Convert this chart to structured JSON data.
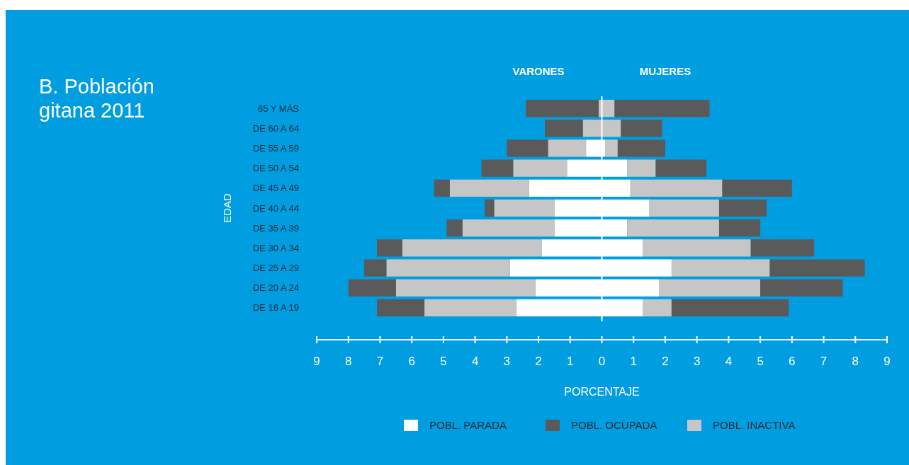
{
  "chart_data": {
    "type": "bar",
    "orientation": "horizontal",
    "stacked": true,
    "title": "B. Población gitana 2011",
    "xlabel": "PORCENTAJE",
    "ylabel": "EDAD",
    "annotations": [
      "VARONES",
      "MUJERES"
    ],
    "categories": [
      "65 Y MÁS",
      "DE 60 A 64",
      "DE 55 A 59",
      "DE 50 A 54",
      "DE 45 A 49",
      "DE 40 A 44",
      "DE 35 A 39",
      "DE 30 A 34",
      "DE 25 A 29",
      "DE 20 A 24",
      "DE 16 A 19"
    ],
    "series": [
      {
        "name": "POBL. PARADA",
        "color": "#ffffff",
        "values": [
          0,
          0,
          -0.5,
          -1.1,
          -2.3,
          -1.5,
          -1.5,
          -1.9,
          -2.9,
          -2.1,
          -2.7
        ]
      },
      {
        "color": "#c6c6c6",
        "values": [
          -0.1,
          -0.6,
          -1.2,
          -1.7,
          -2.5,
          -1.9,
          -2.9,
          -4.4,
          -3.9,
          -4.4,
          -2.9
        ]
      },
      {
        "name": "POBL. OCUPADA",
        "color": "#5a5a5a",
        "values": [
          -2.3,
          -1.2,
          -1.3,
          -1.0,
          -0.5,
          -0.3,
          -0.5,
          -0.8,
          -0.7,
          -1.5,
          -1.5
        ]
      },
      {
        "color": "#ffffff",
        "values": [
          0,
          0,
          0.1,
          0.8,
          0.9,
          1.5,
          0.8,
          1.3,
          2.2,
          1.8,
          1.3
        ]
      },
      {
        "name": "POBL. INACTIVA",
        "color": "#c6c6c6",
        "values": [
          0.4,
          0.6,
          0.4,
          0.9,
          2.9,
          2.2,
          2.9,
          3.4,
          3.1,
          3.2,
          0.9
        ]
      },
      {
        "color": "#5a5a5a",
        "values": [
          3.0,
          1.3,
          1.5,
          1.6,
          2.2,
          1.5,
          1.3,
          2.0,
          3.0,
          2.6,
          3.7
        ]
      }
    ],
    "xlim": [
      -9,
      9
    ],
    "xticks": [
      {
        "value": -9,
        "label": "9"
      },
      {
        "value": -8,
        "label": "8"
      },
      {
        "value": -7,
        "label": "7"
      },
      {
        "value": -6,
        "label": "6"
      },
      {
        "value": -5,
        "label": "5"
      },
      {
        "value": -4,
        "label": "4"
      },
      {
        "value": -3,
        "label": "3"
      },
      {
        "value": -2,
        "label": "2"
      },
      {
        "value": -1,
        "label": "1"
      },
      0,
      1,
      2,
      3,
      4,
      5,
      6,
      7,
      8,
      9
    ],
    "legend": "bottom"
  }
}
